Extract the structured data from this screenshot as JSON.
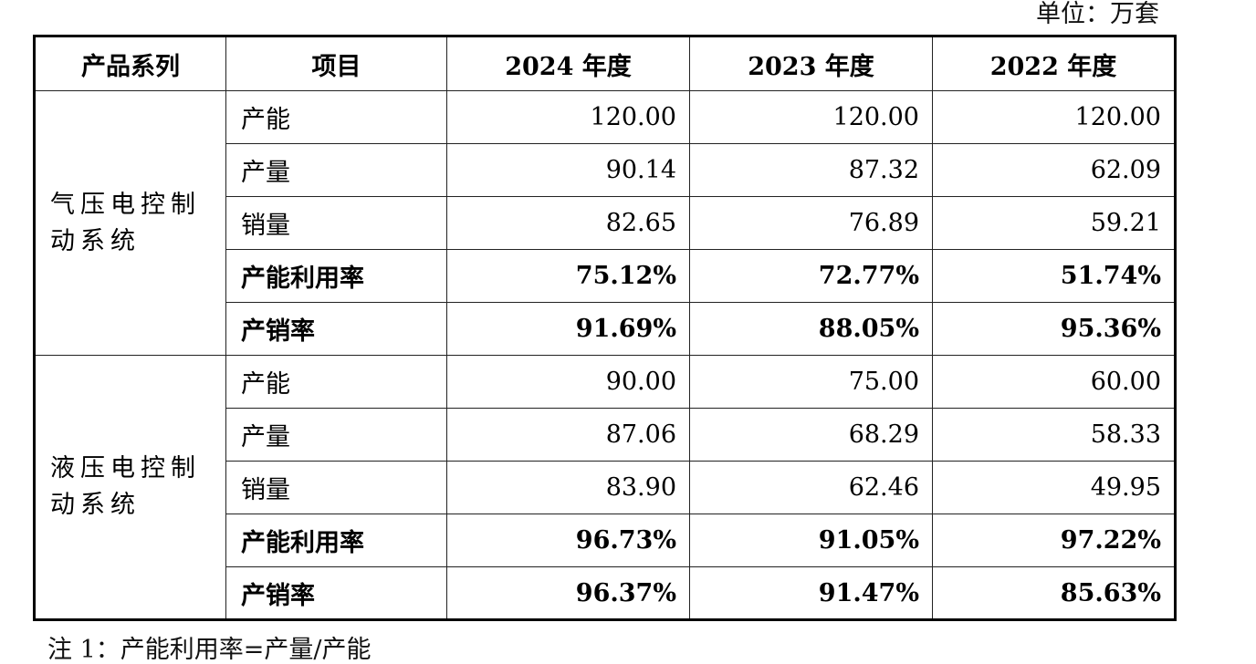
{
  "unit_label": "单位：万套",
  "table": {
    "headers": [
      "产品系列",
      "项目",
      "2024 年度",
      "2023 年度",
      "2022 年度"
    ],
    "groups": [
      {
        "series": "气压电控制动系统",
        "rows": [
          {
            "item": "产能",
            "values": [
              "120.00",
              "120.00",
              "120.00"
            ],
            "bold": false
          },
          {
            "item": "产量",
            "values": [
              "90.14",
              "87.32",
              "62.09"
            ],
            "bold": false
          },
          {
            "item": "销量",
            "values": [
              "82.65",
              "76.89",
              "59.21"
            ],
            "bold": false
          },
          {
            "item": "产能利用率",
            "values": [
              "75.12%",
              "72.77%",
              "51.74%"
            ],
            "bold": true
          },
          {
            "item": "产销率",
            "values": [
              "91.69%",
              "88.05%",
              "95.36%"
            ],
            "bold": true
          }
        ]
      },
      {
        "series": "液压电控制动系统",
        "rows": [
          {
            "item": "产能",
            "values": [
              "90.00",
              "75.00",
              "60.00"
            ],
            "bold": false
          },
          {
            "item": "产量",
            "values": [
              "87.06",
              "68.29",
              "58.33"
            ],
            "bold": false
          },
          {
            "item": "销量",
            "values": [
              "83.90",
              "62.46",
              "49.95"
            ],
            "bold": false
          },
          {
            "item": "产能利用率",
            "values": [
              "96.73%",
              "91.05%",
              "97.22%"
            ],
            "bold": true
          },
          {
            "item": "产销率",
            "values": [
              "96.37%",
              "91.47%",
              "85.63%"
            ],
            "bold": true
          }
        ]
      }
    ]
  },
  "footnote": "注 1：产能利用率=产量/产能"
}
